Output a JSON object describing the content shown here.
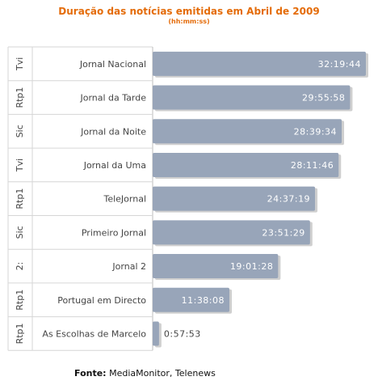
{
  "title": "Duração das notícias emitidas em Abril de 2009",
  "subtitle": "(hh:mm:ss)",
  "source": {
    "label": "Fonte:",
    "text": "MediaMonitor, Telenews"
  },
  "colors": {
    "bar": "#98a5b9",
    "bar_shadow": "#cfcfcf",
    "title": "#e46c0a",
    "grid": "#d6d6d6",
    "label": "#444444"
  },
  "chart_data": {
    "type": "bar",
    "orientation": "horizontal",
    "title": "Duração das notícias emitidas em Abril de 2009",
    "subtitle": "(hh:mm:ss)",
    "categories": [
      {
        "channel": "Tvi",
        "program": "Jornal Nacional"
      },
      {
        "channel": "Rtp1",
        "program": "Jornal da Tarde"
      },
      {
        "channel": "Sic",
        "program": "Jornal da Noite"
      },
      {
        "channel": "Tvi",
        "program": "Jornal da Uma"
      },
      {
        "channel": "Rtp1",
        "program": "TeleJornal"
      },
      {
        "channel": "Sic",
        "program": "Primeiro Jornal"
      },
      {
        "channel": "2:",
        "program": "Jornal 2"
      },
      {
        "channel": "Rtp1",
        "program": "Portugal em Directo"
      },
      {
        "channel": "Rtp1",
        "program": "As Escolhas de Marcelo"
      }
    ],
    "values": [
      "32:19:44",
      "29:55:58",
      "28:39:34",
      "28:11:46",
      "24:37:19",
      "23:51:29",
      "19:01:28",
      "11:38:08",
      "0:57:53"
    ],
    "value_unit": "hh:mm:ss",
    "xlim": [
      "0:00:00",
      "32:19:44"
    ],
    "grid": false,
    "legend": "none"
  }
}
